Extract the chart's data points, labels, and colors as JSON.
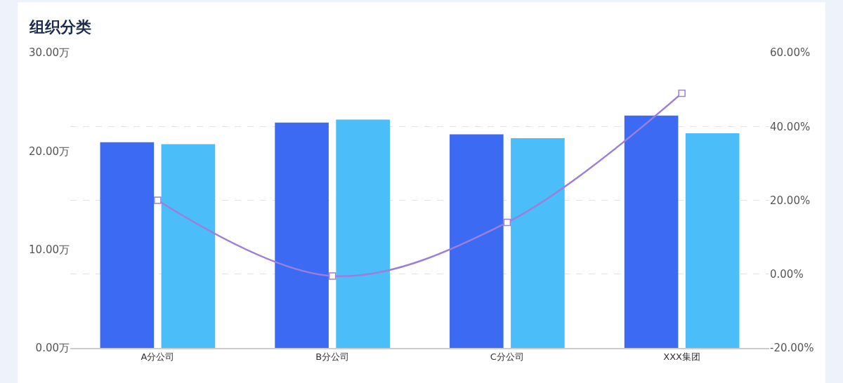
{
  "chart_data": {
    "type": "bar",
    "title": "组织分类",
    "categories": [
      "A分公司",
      "B分公司",
      "C分公司",
      "XXX集团"
    ],
    "series": [
      {
        "color": "#3d6af2",
        "values": [
          20.9,
          22.9,
          21.7,
          23.6
        ]
      },
      {
        "color": "#4bbdf8",
        "values": [
          20.7,
          23.2,
          21.3,
          21.8
        ]
      },
      {
        "type": "line",
        "axis": "y2",
        "color": "#9b7fdb",
        "values": [
          20,
          -0.5,
          14,
          49
        ],
        "marker": "square"
      }
    ],
    "ylim": [
      0,
      30
    ],
    "yticks": [
      {
        "value": 0,
        "label": "0.00万"
      },
      {
        "value": 10,
        "label": "10.00万"
      },
      {
        "value": 20,
        "label": "20.00万"
      },
      {
        "value": 30,
        "label": "30.00万"
      }
    ],
    "y2lim": [
      -20,
      60
    ],
    "y2ticks": [
      {
        "value": -20,
        "label": "-20.00%"
      },
      {
        "value": 0,
        "label": "0.00%"
      },
      {
        "value": 20,
        "label": "20.00%"
      },
      {
        "value": 40,
        "label": "40.00%"
      },
      {
        "value": 60,
        "label": "60.00%"
      }
    ],
    "grid": true,
    "legend": false
  }
}
